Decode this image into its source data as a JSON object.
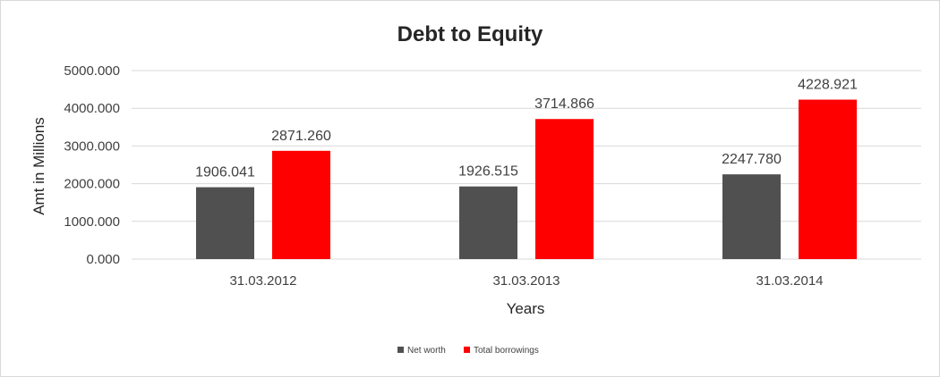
{
  "chart_data": {
    "type": "bar",
    "title": "Debt to Equity",
    "xlabel": "Years",
    "ylabel": "Amt in Millions",
    "categories": [
      "31.03.2012",
      "31.03.2013",
      "31.03.2014"
    ],
    "series": [
      {
        "name": "Net worth",
        "values": [
          1906.041,
          1926.515,
          2247.78
        ],
        "labels": [
          "1906.041",
          "1926.515",
          "2247.780"
        ],
        "color": "#505050"
      },
      {
        "name": "Total borrowings",
        "values": [
          2871.26,
          3714.866,
          4228.921
        ],
        "labels": [
          "2871.260",
          "3714.866",
          "4228.921"
        ],
        "color": "#ff0000"
      }
    ],
    "ylim": [
      0,
      5000
    ],
    "yticks": [
      "0.000",
      "1000.000",
      "2000.000",
      "3000.000",
      "4000.000",
      "5000.000"
    ],
    "grid": true,
    "legend_position": "bottom"
  }
}
